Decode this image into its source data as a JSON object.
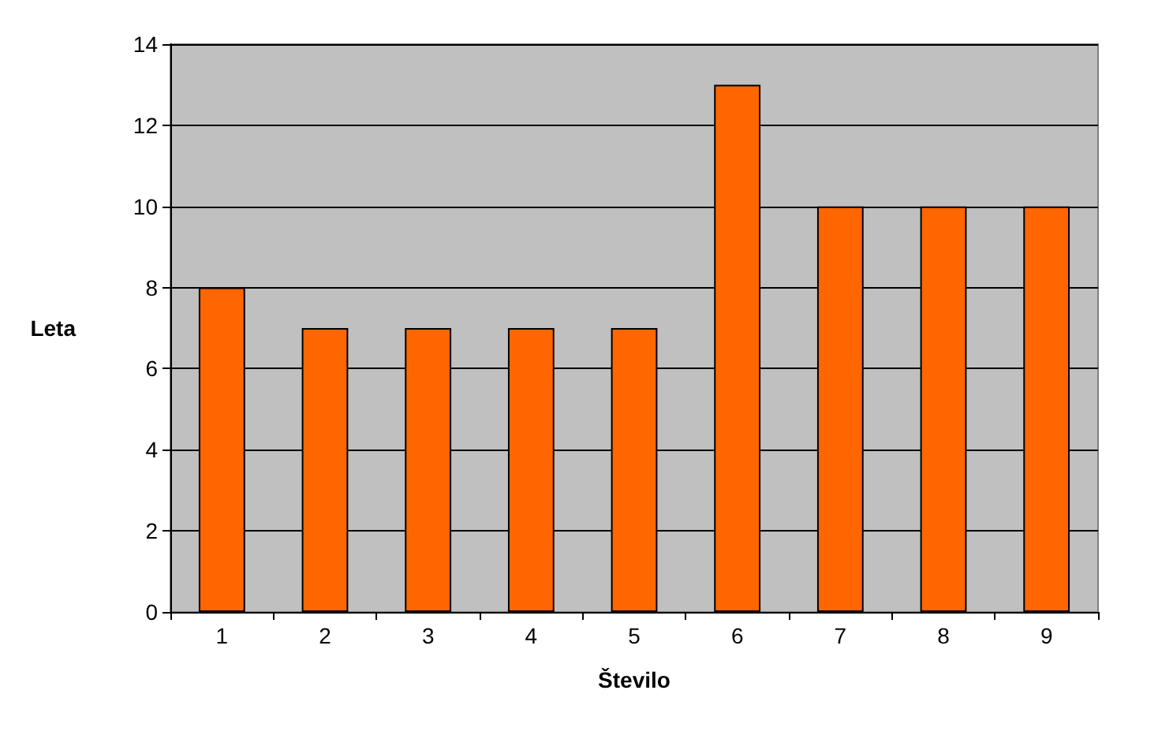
{
  "chart_data": {
    "type": "bar",
    "xlabel": "Število",
    "ylabel": "Leta",
    "categories": [
      "1",
      "2",
      "3",
      "4",
      "5",
      "6",
      "7",
      "8",
      "9"
    ],
    "values": [
      8,
      7,
      7,
      7,
      7,
      13,
      10,
      10,
      10
    ],
    "color": "#ff6600",
    "ylim": [
      0,
      14
    ],
    "yticks": [
      0,
      2,
      4,
      6,
      8,
      10,
      12,
      14
    ],
    "grid": "y"
  }
}
